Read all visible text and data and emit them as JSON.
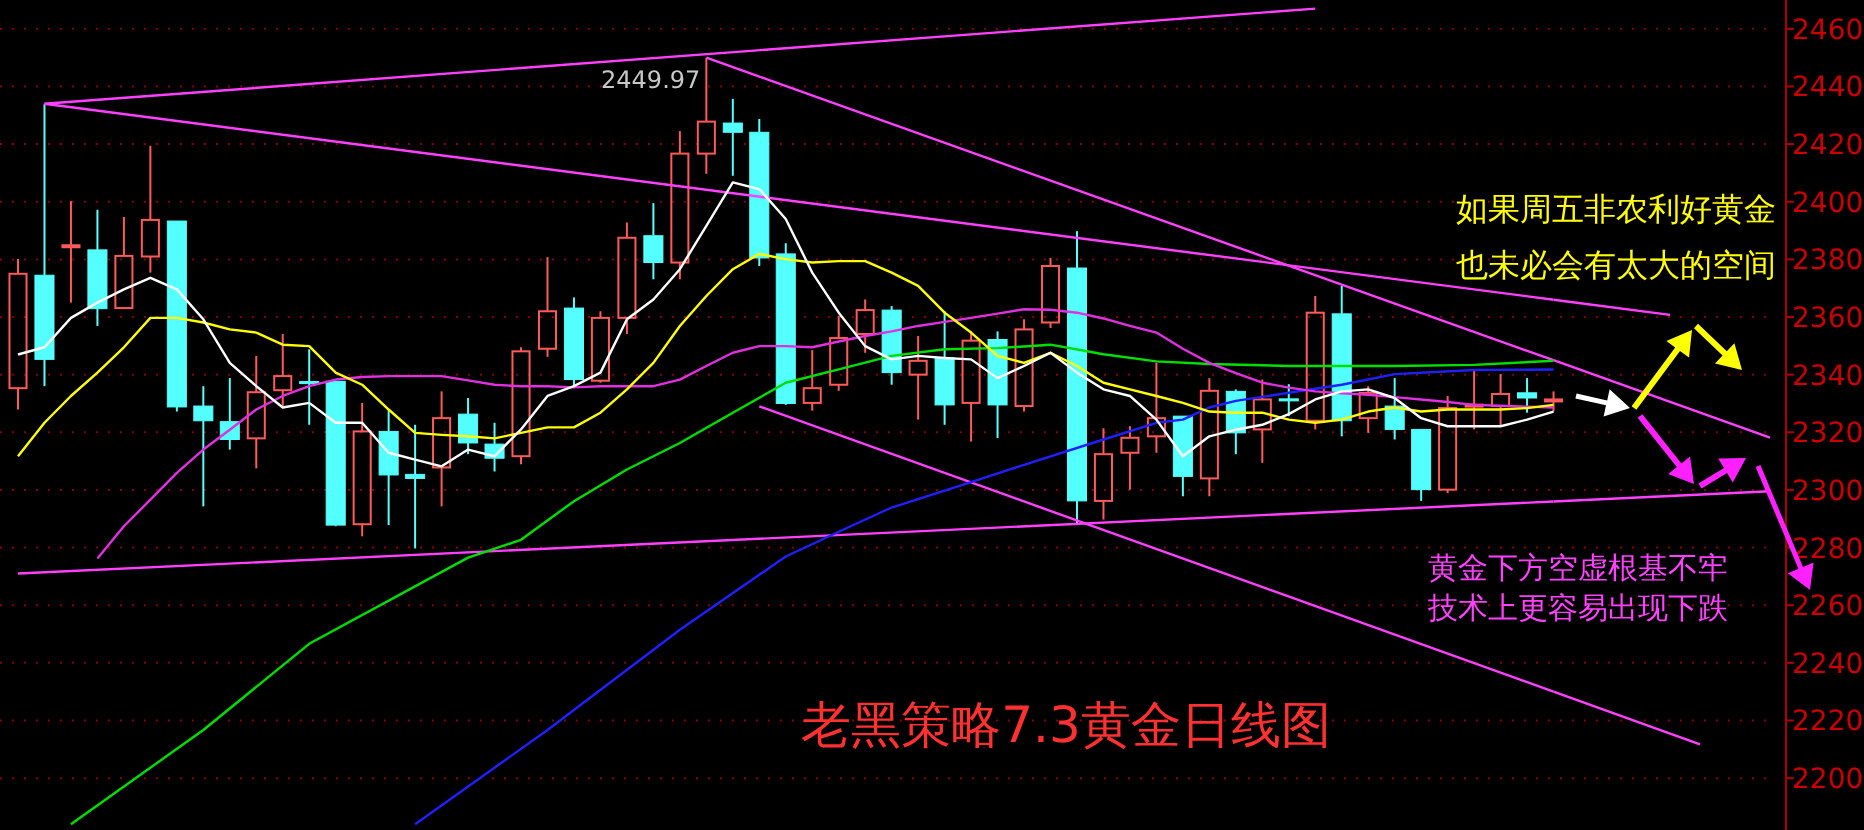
{
  "chart_data": {
    "type": "candlestick",
    "title": "老黑策略7.3黄金日线图",
    "annotations": [
      "2449.97",
      "如果周五非农利好黄金",
      "也未必会有太大的空间",
      "黄金下方空虚根基不牢",
      "技术上更容易出现下跌"
    ],
    "categories": [
      null,
      null,
      null,
      null,
      null,
      null,
      null,
      null,
      null,
      null,
      null,
      null,
      null,
      null,
      null,
      null,
      null,
      null,
      null,
      null,
      null,
      null,
      null,
      null,
      null,
      null,
      null,
      null,
      null,
      null,
      null,
      null,
      null,
      null,
      null,
      null,
      null,
      null,
      null,
      null,
      null,
      null,
      null,
      null,
      null,
      null,
      null,
      null,
      null,
      null,
      null,
      null,
      null,
      null,
      null,
      null,
      null,
      null,
      null
    ],
    "ohlc": [
      [
        2335.3,
        2380.1,
        2327.9,
        2375.0
      ],
      [
        2374.5,
        2433.8,
        2336.0,
        2345.3
      ],
      [
        2384.5,
        2400.2,
        2365.0,
        2384.9
      ],
      [
        2383.3,
        2397.2,
        2356.9,
        2362.9
      ],
      [
        2363.1,
        2394.7,
        2363.1,
        2381.2
      ],
      [
        2381.0,
        2419.4,
        2375.4,
        2393.7
      ],
      [
        2393.3,
        2393.3,
        2327.2,
        2328.8
      ],
      [
        2329.1,
        2336.0,
        2294.3,
        2324.0
      ],
      [
        2323.7,
        2338.8,
        2314.0,
        2317.5
      ],
      [
        2317.9,
        2346.5,
        2307.5,
        2333.9
      ],
      [
        2334.6,
        2354.1,
        2329.1,
        2339.5
      ],
      [
        2337.6,
        2348.8,
        2322.6,
        2336.9
      ],
      [
        2337.7,
        2337.7,
        2287.4,
        2287.8
      ],
      [
        2288.1,
        2330.2,
        2283.9,
        2320.3
      ],
      [
        2320.3,
        2327.9,
        2287.8,
        2305.2
      ],
      [
        2305.4,
        2322.6,
        2279.7,
        2304.0
      ],
      [
        2307.8,
        2334.2,
        2294.3,
        2324.9
      ],
      [
        2326.3,
        2331.9,
        2312.4,
        2316.3
      ],
      [
        2315.9,
        2323.3,
        2306.4,
        2311.0
      ],
      [
        2311.7,
        2349.5,
        2308.9,
        2348.1
      ],
      [
        2349.0,
        2380.8,
        2346.2,
        2362.0
      ],
      [
        2363.1,
        2366.8,
        2336.0,
        2338.3
      ],
      [
        2337.9,
        2362.0,
        2337.2,
        2359.7
      ],
      [
        2359.7,
        2392.8,
        2354.1,
        2387.5
      ],
      [
        2388.2,
        2399.5,
        2373.1,
        2378.9
      ],
      [
        2378.9,
        2424.5,
        2373.1,
        2416.7
      ],
      [
        2416.7,
        2449.97,
        2409.7,
        2427.8
      ],
      [
        2427.3,
        2435.7,
        2409.0,
        2424.1
      ],
      [
        2424.1,
        2428.7,
        2377.7,
        2380.5
      ],
      [
        2381.9,
        2385.6,
        2329.5,
        2330.0
      ],
      [
        2330.2,
        2348.5,
        2327.5,
        2335.3
      ],
      [
        2336.5,
        2360.4,
        2334.4,
        2352.7
      ],
      [
        2354.1,
        2366.1,
        2347.6,
        2362.4
      ],
      [
        2362.4,
        2363.8,
        2336.5,
        2340.7
      ],
      [
        2340.0,
        2353.4,
        2324.4,
        2344.8
      ],
      [
        2345.8,
        2362.0,
        2322.6,
        2329.5
      ],
      [
        2330.2,
        2355.0,
        2316.8,
        2351.8
      ],
      [
        2352.2,
        2355.0,
        2318.0,
        2329.5
      ],
      [
        2329.1,
        2359.2,
        2327.2,
        2355.7
      ],
      [
        2358.1,
        2380.5,
        2356.2,
        2377.7
      ],
      [
        2377.0,
        2389.8,
        2287.8,
        2296.2
      ],
      [
        2296.2,
        2321.4,
        2289.7,
        2312.4
      ],
      [
        2312.9,
        2322.1,
        2300.1,
        2318.1
      ],
      [
        2318.6,
        2344.1,
        2312.9,
        2324.9
      ],
      [
        2325.6,
        2325.6,
        2297.8,
        2304.7
      ],
      [
        2304.0,
        2338.8,
        2297.8,
        2334.4
      ],
      [
        2334.2,
        2334.9,
        2312.4,
        2319.8
      ],
      [
        2321.0,
        2338.3,
        2309.4,
        2331.4
      ],
      [
        2331.6,
        2336.7,
        2325.6,
        2330.9
      ],
      [
        2324.0,
        2367.3,
        2321.0,
        2361.5
      ],
      [
        2361.1,
        2370.8,
        2318.6,
        2324.0
      ],
      [
        2324.9,
        2336.0,
        2319.8,
        2333.7
      ],
      [
        2329.1,
        2338.8,
        2317.5,
        2321.0
      ],
      [
        2321.0,
        2321.0,
        2296.2,
        2300.1
      ],
      [
        2300.1,
        2332.6,
        2298.9,
        2328.4
      ],
      [
        2329.2,
        2341.8,
        2321.0,
        2329.6
      ],
      [
        2329.1,
        2340.2,
        2322.1,
        2333.3
      ],
      [
        2333.7,
        2338.8,
        2326.8,
        2331.9
      ],
      [
        2331.2,
        2334.2,
        2327.2,
        2331.4
      ]
    ],
    "series": [
      {
        "type": "line",
        "color": "#ff40ff",
        "values": [
          2271,
          null,
          null,
          null,
          null,
          null,
          null,
          null,
          null,
          null,
          null,
          null,
          null,
          null,
          null,
          null,
          null,
          null,
          null,
          null,
          null,
          null,
          null,
          null,
          null,
          null,
          null,
          null,
          null,
          null,
          null,
          null,
          null,
          null,
          null,
          null,
          null,
          null,
          null,
          null,
          null,
          null,
          null,
          null,
          null,
          null,
          null,
          null,
          null,
          null,
          null,
          null,
          null,
          null,
          null,
          null,
          null,
          null,
          2296
        ]
      },
      {
        "type": "line",
        "color": "#ff40ff",
        "values": [
          null,
          2434,
          null,
          null,
          null,
          null,
          null,
          null,
          null,
          null,
          null,
          null,
          null,
          null,
          null,
          null,
          null,
          null,
          null,
          null,
          null,
          null,
          null,
          null,
          null,
          null,
          null,
          null,
          null,
          null,
          null,
          null,
          null,
          null,
          null,
          null,
          null,
          null,
          null,
          null,
          null,
          null,
          null,
          null,
          null,
          null,
          null,
          null,
          null,
          2467,
          null,
          null,
          null,
          null,
          null,
          null,
          null,
          null,
          null
        ]
      },
      {
        "type": "line",
        "color": "#ff40ff",
        "values": [
          null,
          2434,
          null,
          null,
          null,
          null,
          null,
          null,
          null,
          null,
          null,
          null,
          null,
          null,
          null,
          null,
          null,
          null,
          null,
          null,
          null,
          null,
          null,
          null,
          null,
          null,
          null,
          null,
          null,
          null,
          null,
          null,
          null,
          null,
          null,
          null,
          null,
          null,
          null,
          null,
          null,
          null,
          null,
          null,
          null,
          null,
          null,
          null,
          null,
          null,
          null,
          null,
          null,
          null,
          null,
          null,
          null,
          null,
          2366
        ]
      },
      {
        "type": "line",
        "color": "#ff40ff",
        "values": [
          null,
          null,
          null,
          null,
          null,
          null,
          null,
          null,
          null,
          null,
          null,
          null,
          null,
          null,
          null,
          null,
          null,
          null,
          null,
          null,
          null,
          null,
          null,
          null,
          null,
          null,
          2450,
          null,
          null,
          null,
          null,
          null,
          null,
          null,
          null,
          null,
          null,
          null,
          null,
          null,
          null,
          null,
          null,
          null,
          null,
          null,
          null,
          null,
          null,
          null,
          null,
          null,
          null,
          null,
          null,
          null,
          null,
          null,
          2345
        ]
      },
      {
        "type": "line",
        "color": "#ff40ff",
        "values": [
          null,
          null,
          null,
          null,
          null,
          null,
          null,
          null,
          null,
          null,
          null,
          null,
          null,
          null,
          null,
          null,
          null,
          null,
          null,
          null,
          null,
          null,
          null,
          null,
          null,
          null,
          null,
          null,
          2329,
          null,
          null,
          null,
          null,
          null,
          null,
          null,
          null,
          null,
          null,
          null,
          null,
          null,
          null,
          null,
          null,
          null,
          null,
          null,
          null,
          null,
          null,
          null,
          null,
          null,
          null,
          null,
          null,
          null,
          2230
        ]
      },
      {
        "type": "line",
        "color": "#00e000",
        "values": [
          null,
          null,
          2184.0,
          null,
          null,
          null,
          null,
          2216.7,
          null,
          null,
          null,
          2246.6,
          null,
          null,
          null,
          null,
          null,
          2276.5,
          null,
          2282.7,
          null,
          2296.1,
          null,
          2307.1,
          null,
          2316.3,
          null,
          2326.8,
          null,
          2337.2,
          null,
          2341.8,
          null,
          2346.5,
          null,
          2348.8,
          null,
          2349.2,
          null,
          2350.4,
          null,
          2347.1,
          null,
          2344.6,
          null,
          2343.7,
          null,
          null,
          2343.0,
          null,
          null,
          null,
          2343.0,
          null,
          null,
          2343.4,
          null,
          null,
          2344.8
        ]
      },
      {
        "type": "line",
        "color": "#2020ff",
        "values": [
          null,
          null,
          null,
          null,
          null,
          null,
          null,
          null,
          null,
          null,
          null,
          null,
          null,
          null,
          null,
          2184.0,
          null,
          null,
          null,
          null,
          2216.7,
          null,
          null,
          null,
          null,
          2251.5,
          null,
          null,
          null,
          2276.9,
          null,
          2285.5,
          null,
          2293.9,
          null,
          null,
          2302.7,
          null,
          2308.7,
          null,
          null,
          2317.5,
          null,
          2323.3,
          2324.4,
          2328.6,
          2330.9,
          null,
          2333.7,
          null,
          2336.5,
          null,
          2340.2,
          null,
          null,
          2341.6,
          null,
          null,
          2341.8
        ]
      },
      {
        "type": "line",
        "color": "#e030e0",
        "values": [
          null,
          null,
          null,
          2276.2,
          2287.4,
          2296.6,
          2305.9,
          2314.0,
          2320.9,
          2327.9,
          2332.6,
          2336.0,
          2338.3,
          2339.2,
          2339.5,
          2339.5,
          2339.5,
          2338.0,
          2336.5,
          2336.0,
          2336.0,
          2335.6,
          2336.0,
          2336.0,
          2336.0,
          2338.3,
          2343.0,
          2347.6,
          2349.9,
          2349.9,
          2349.5,
          2351.5,
          2353.4,
          2355.0,
          2356.9,
          2358.3,
          2359.7,
          2361.2,
          2362.7,
          2362.5,
          2361.5,
          2359.5,
          2356.9,
          2354.6,
          2349.0,
          2344.1,
          2340.5,
          2337.2,
          2335.5,
          2334.2,
          2333.5,
          2333.0,
          2332.2,
          2331.4,
          2330.5,
          2329.5,
          2329.2,
          2328.9,
          2328.6
        ]
      },
      {
        "type": "line",
        "color": "#ffff00",
        "values": [
          2311.7,
          2323.3,
          2332.6,
          2340.7,
          2349.5,
          2359.7,
          2359.7,
          2358.1,
          2355.7,
          2354.6,
          2350.4,
          2349.9,
          2340.7,
          2336.5,
          2327.9,
          2319.8,
          2319.1,
          2318.6,
          2317.9,
          2319.8,
          2321.7,
          2321.7,
          2326.8,
          2334.9,
          2344.1,
          2356.9,
          2367.3,
          2376.6,
          2381.9,
          2380.1,
          2378.9,
          2379.4,
          2379.4,
          2375.4,
          2370.8,
          2361.5,
          2354.6,
          2346.5,
          2344.1,
          2347.6,
          2343.0,
          2337.2,
          2334.9,
          2332.6,
          2330.2,
          2327.2,
          2326.8,
          2326.8,
          2324.4,
          2323.3,
          2324.4,
          2327.2,
          2328.6,
          2327.2,
          2327.9,
          2327.9,
          2327.9,
          2328.4,
          2329.5
        ]
      },
      {
        "type": "line",
        "color": "#ffffff",
        "values": [
          2347.0,
          2349.5,
          2359.7,
          2365.0,
          2369.6,
          2373.6,
          2369.6,
          2359.2,
          2344.1,
          2336.0,
          2328.6,
          2330.2,
          2323.3,
          2323.3,
          2312.9,
          2310.5,
          2308.2,
          2314.0,
          2311.7,
          2321.0,
          2332.6,
          2336.0,
          2340.7,
          2359.2,
          2366.1,
          2376.6,
          2391.6,
          2406.7,
          2404.4,
          2394.0,
          2375.4,
          2361.5,
          2349.9,
          2345.3,
          2346.5,
          2345.8,
          2345.3,
          2338.8,
          2343.0,
          2347.6,
          2340.7,
          2334.9,
          2332.6,
          2324.4,
          2311.7,
          2318.6,
          2320.9,
          2322.6,
          2326.3,
          2331.4,
          2334.2,
          2334.9,
          2331.9,
          2324.9,
          2322.1,
          2322.1,
          2322.1,
          2324.4,
          2327.2
        ]
      }
    ],
    "ylim": [
      2182,
      2470
    ],
    "yticks": [
      2200,
      2220,
      2240,
      2260,
      2280,
      2300,
      2320,
      2340,
      2360,
      2380,
      2400,
      2420,
      2440,
      2460
    ],
    "grid": "y"
  }
}
